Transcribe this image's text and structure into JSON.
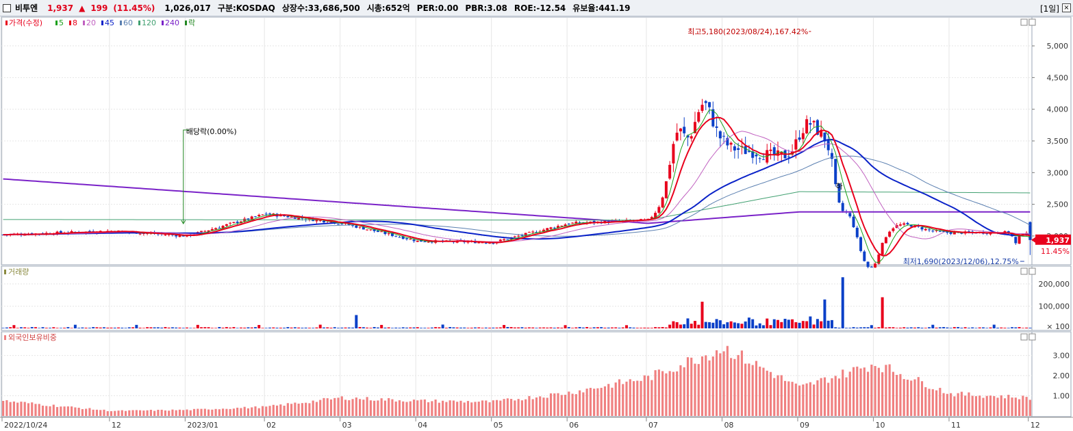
{
  "header": {
    "stock_name": "비투엔",
    "price": "1,937",
    "change_arrow": "▲",
    "change": "199",
    "change_pct": "(11.45%)",
    "volume": "1,026,017",
    "market": "구분:KOSDAQ",
    "listed_shares": "상장수:33,686,500",
    "market_cap": "시총:652억",
    "per": "PER:0.00",
    "pbr": "PBR:3.08",
    "roe": "ROE:-12.54",
    "retention": "유보율:441.19",
    "period": "[1일]",
    "close_glyph": "×"
  },
  "colors": {
    "up": "#e8001c",
    "down": "#0b40c8",
    "ma5": "#1aa01a",
    "ma8": "#e8001c",
    "ma20": "#c060c0",
    "ma45": "#0a22c8",
    "ma60": "#5a7fb0",
    "ma120": "#40a070",
    "ma240": "#7a22c8",
    "foreign_bar": "#f08080",
    "grid": "#e6e6e6",
    "panel_border": "#9aa6b4"
  },
  "chart_data": [
    {
      "panel": "price",
      "type": "candlestick",
      "legend": [
        {
          "label": "가격(수정)",
          "color": "#e8001c"
        },
        {
          "label": "5",
          "color": "#1aa01a"
        },
        {
          "label": "8",
          "color": "#e8001c"
        },
        {
          "label": "20",
          "color": "#c060c0"
        },
        {
          "label": "45",
          "color": "#0a22c8"
        },
        {
          "label": "60",
          "color": "#5a7fb0"
        },
        {
          "label": "120",
          "color": "#40a070"
        },
        {
          "label": "240",
          "color": "#7a22c8"
        },
        {
          "label": "락",
          "color": "#228822"
        }
      ],
      "y_axis_ticks": [
        "5,000",
        "4,500",
        "4,000",
        "3,500",
        "3,000",
        "2,500",
        "2,000"
      ],
      "y_axis_values": [
        5000,
        4500,
        4000,
        3500,
        3000,
        2500,
        2000
      ],
      "ylim": [
        1600,
        5400
      ],
      "current_price_label": "1,937",
      "current_pct_label": "11.45%",
      "annotations": {
        "high": "최고5,180(2023/08/24),167.42%",
        "low": "최저1,690(2023/12/06),12.75%",
        "dividend": "배당락(0.00%)",
        "limit_down_mark": "하"
      },
      "month_anchors": [
        {
          "label": "2022/10/24",
          "price": 2020
        },
        {
          "label": "12",
          "price": 2080
        },
        {
          "label": "2023/01",
          "price": 2000
        },
        {
          "label": "02",
          "price": 2350
        },
        {
          "label": "03",
          "price": 2200
        },
        {
          "label": "04",
          "price": 1920
        },
        {
          "label": "05",
          "price": 1900
        },
        {
          "label": "06",
          "price": 2200
        },
        {
          "label": "07",
          "price": 2250
        },
        {
          "label": "08",
          "price": 3400
        },
        {
          "label": "09",
          "price": 3200
        },
        {
          "label": "10",
          "price": 2100
        },
        {
          "label": "11",
          "price": 2050
        },
        {
          "label": "12",
          "price": 2060
        }
      ],
      "ma_levels": {
        "ma240": {
          "start": 2900,
          "jul": 2200,
          "sep": 2380,
          "end": 2380
        },
        "ma120": {
          "start": 2260,
          "jul": 2250,
          "sep": 2700,
          "end": 2680
        },
        "ma45_peak": 3520,
        "ma60_peak": 3250
      }
    },
    {
      "panel": "volume",
      "type": "bar",
      "title": "거래량",
      "y_axis_ticks": [
        "200,000",
        "100,000",
        "× 100"
      ],
      "y_axis_values": [
        200000,
        100000,
        0
      ],
      "ylim": [
        0,
        240000
      ],
      "spikes": [
        {
          "label": "02",
          "value": 60000
        },
        {
          "label": "07",
          "value": 120000
        },
        {
          "label": "08",
          "value": 130000
        },
        {
          "label": "09",
          "value": 230000
        },
        {
          "label": "09",
          "value": 140000
        }
      ]
    },
    {
      "panel": "foreign_ownership",
      "type": "bar",
      "title": "외국인보유비중",
      "y_axis_ticks": [
        "3.00",
        "2.00",
        "1.00"
      ],
      "y_axis_values": [
        3.0,
        2.0,
        1.0
      ],
      "ylim": [
        0,
        3.8
      ],
      "monthly_levels": [
        {
          "label": "2022/10/24",
          "value": 0.75
        },
        {
          "label": "12",
          "value": 0.25
        },
        {
          "label": "2023/01",
          "value": 0.3
        },
        {
          "label": "02",
          "value": 0.45
        },
        {
          "label": "03",
          "value": 0.9
        },
        {
          "label": "04",
          "value": 0.75
        },
        {
          "label": "05",
          "value": 0.7
        },
        {
          "label": "06",
          "value": 1.15
        },
        {
          "label": "07",
          "value": 1.9
        },
        {
          "label": "08",
          "value": 3.4
        },
        {
          "label": "09",
          "value": 1.4
        },
        {
          "label": "10",
          "value": 2.6
        },
        {
          "label": "11",
          "value": 1.1
        },
        {
          "label": "12",
          "value": 0.9
        }
      ]
    }
  ],
  "x_axis_labels": [
    "2022/10/24",
    "12",
    "2023/01",
    "02",
    "03",
    "04",
    "05",
    "06",
    "07",
    "08",
    "09",
    "10",
    "11",
    "12"
  ]
}
